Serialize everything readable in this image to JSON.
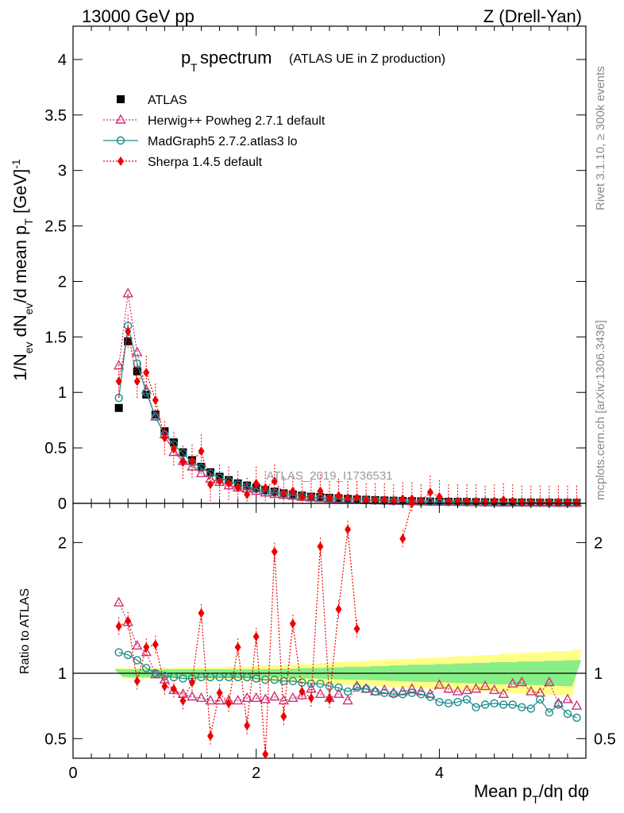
{
  "header": {
    "left": "13000 GeV pp",
    "right": "Z (Drell-Yan)"
  },
  "side_labels": {
    "rivet": "Rivet 3.1.10, ≥ 300k events",
    "mcplots": "mcplots.cern.ch [arXiv:1306.3436]"
  },
  "watermark": "ATLAS_2019_I1736531",
  "colors": {
    "atlas": "#000000",
    "herwig": "#cc3377",
    "madgraph": "#1a8a8a",
    "sherpa": "#ee0000",
    "band_inner": "#88ee88",
    "band_outer": "#ffff88"
  },
  "chart_data": [
    {
      "type": "scatter",
      "title_main": "p",
      "title_sub": "T",
      "title_main2": " spectrum",
      "title_note": "(ATLAS UE in Z production)",
      "ylabel": "1/N_ev dN_ev/d mean p_T [GeV]^-1",
      "ylabel_parts": [
        "1/N",
        "ev",
        " dN",
        "ev",
        "/d mean p",
        "T",
        " [GeV]",
        "-1"
      ],
      "xlim": [
        0,
        5.6
      ],
      "ylim": [
        0,
        4.3
      ],
      "yticks": [
        0,
        0.5,
        1,
        1.5,
        2,
        2.5,
        3,
        3.5,
        4
      ],
      "ytick_labels": [
        "0",
        "0.5",
        "1",
        "1.5",
        "2",
        "2.5",
        "3",
        "3.5",
        "4"
      ],
      "x": [
        0.5,
        0.6,
        0.7,
        0.8,
        0.9,
        1.0,
        1.1,
        1.2,
        1.3,
        1.4,
        1.5,
        1.6,
        1.7,
        1.8,
        1.9,
        2.0,
        2.1,
        2.2,
        2.3,
        2.4,
        2.5,
        2.6,
        2.7,
        2.8,
        2.9,
        3.0,
        3.1,
        3.2,
        3.3,
        3.4,
        3.5,
        3.6,
        3.7,
        3.8,
        3.9,
        4.0,
        4.1,
        4.2,
        4.3,
        4.4,
        4.5,
        4.6,
        4.7,
        4.8,
        4.9,
        5.0,
        5.1,
        5.2,
        5.3,
        5.4,
        5.5
      ],
      "series": [
        {
          "name": "ATLAS",
          "key": "atlas",
          "marker": "square",
          "values": [
            0.86,
            1.46,
            1.19,
            0.98,
            0.8,
            0.65,
            0.55,
            0.46,
            0.39,
            0.33,
            0.28,
            0.24,
            0.21,
            0.18,
            0.16,
            0.14,
            0.12,
            0.105,
            0.09,
            0.08,
            0.07,
            0.06,
            0.055,
            0.05,
            0.045,
            0.04,
            0.035,
            0.032,
            0.029,
            0.026,
            0.024,
            0.022,
            0.02,
            0.018,
            0.016,
            0.015,
            0.014,
            0.013,
            0.012,
            0.011,
            0.01,
            0.009,
            0.008,
            0.008,
            0.007,
            0.007,
            0.006,
            0.006,
            0.005,
            0.005,
            0.005
          ]
        },
        {
          "name": "Herwig++ Powheg 2.7.1 default",
          "key": "herwig",
          "marker": "triangle",
          "values": [
            1.24,
            1.89,
            1.36,
            1.02,
            0.78,
            0.62,
            0.46,
            0.38,
            0.33,
            0.27,
            0.22,
            0.19,
            0.16,
            0.14,
            0.13,
            0.11,
            0.095,
            0.082,
            0.074,
            0.066,
            0.055,
            0.05,
            0.045,
            0.04,
            0.036,
            0.032,
            0.03,
            0.027,
            0.025,
            0.023,
            0.021,
            0.019,
            0.017,
            0.015,
            0.014,
            0.013,
            0.012,
            0.011,
            0.01,
            0.009,
            0.008,
            0.008,
            0.007,
            0.007,
            0.006,
            0.006,
            0.005,
            0.005,
            0.005,
            0.004,
            0.004
          ]
        },
        {
          "name": "MadGraph5 2.7.2.atlas3 lo",
          "key": "madgraph",
          "marker": "circle",
          "values": [
            0.95,
            1.6,
            1.26,
            1.0,
            0.78,
            0.62,
            0.53,
            0.45,
            0.37,
            0.32,
            0.27,
            0.23,
            0.2,
            0.17,
            0.15,
            0.13,
            0.11,
            0.097,
            0.084,
            0.074,
            0.064,
            0.055,
            0.05,
            0.045,
            0.04,
            0.035,
            0.031,
            0.028,
            0.025,
            0.022,
            0.02,
            0.018,
            0.016,
            0.014,
            0.013,
            0.012,
            0.011,
            0.01,
            0.009,
            0.008,
            0.007,
            0.007,
            0.006,
            0.006,
            0.005,
            0.005,
            0.005,
            0.004,
            0.004,
            0.004,
            0.004
          ]
        },
        {
          "name": "Sherpa 1.4.5 default",
          "key": "sherpa",
          "marker": "diamond",
          "values": [
            1.1,
            1.55,
            1.1,
            1.18,
            0.93,
            0.59,
            0.49,
            0.37,
            0.38,
            0.47,
            0.17,
            0.2,
            0.18,
            0.14,
            0.08,
            0.18,
            0.14,
            0.2,
            0.09,
            0.11,
            0.06,
            0.06,
            0.11,
            0.05,
            0.07,
            0.05,
            0.05,
            0.03,
            0.03,
            0.03,
            0.02,
            0.04,
            0.04,
            0.02,
            0.1,
            0.06,
            0.02,
            0.02,
            0.02,
            0.02,
            0.01,
            0.02,
            0.03,
            0.02,
            0.01,
            0.01,
            0.01,
            0.01,
            0.01,
            0.01,
            0.01
          ]
        }
      ],
      "legend_position": "top-left"
    },
    {
      "type": "scatter",
      "ylabel": "Ratio to ATLAS",
      "xlabel": "Mean p_T/dη dφ",
      "xlabel_parts": [
        "Mean p",
        "T",
        "/dη dφ"
      ],
      "xlim": [
        0,
        5.6
      ],
      "ylim": [
        0.35,
        2.3
      ],
      "xticks": [
        0,
        2,
        4
      ],
      "xtick_labels": [
        "0",
        "2",
        "4"
      ],
      "yticks": [
        0.5,
        1,
        2
      ],
      "ytick_labels": [
        "0.5",
        "1",
        "2"
      ],
      "x": [
        0.5,
        0.6,
        0.7,
        0.8,
        0.9,
        1.0,
        1.1,
        1.2,
        1.3,
        1.4,
        1.5,
        1.6,
        1.7,
        1.8,
        1.9,
        2.0,
        2.1,
        2.2,
        2.3,
        2.4,
        2.5,
        2.6,
        2.7,
        2.8,
        2.9,
        3.0,
        3.1,
        3.2,
        3.3,
        3.4,
        3.5,
        3.6,
        3.7,
        3.8,
        3.9,
        4.0,
        4.1,
        4.2,
        4.3,
        4.4,
        4.5,
        4.6,
        4.7,
        4.8,
        4.9,
        5.0,
        5.1,
        5.2,
        5.3,
        5.4,
        5.5
      ],
      "band_inner_halfwidth": [
        0.03,
        0.03,
        0.03,
        0.03,
        0.03,
        0.03,
        0.03,
        0.03,
        0.03,
        0.03,
        0.03,
        0.03,
        0.03,
        0.03,
        0.03,
        0.03,
        0.03,
        0.03,
        0.035,
        0.035,
        0.04,
        0.04,
        0.04,
        0.045,
        0.045,
        0.05,
        0.05,
        0.05,
        0.055,
        0.055,
        0.06,
        0.06,
        0.065,
        0.065,
        0.065,
        0.07,
        0.07,
        0.075,
        0.075,
        0.08,
        0.08,
        0.085,
        0.085,
        0.085,
        0.09,
        0.09,
        0.09,
        0.095,
        0.095,
        0.1,
        0.1
      ],
      "band_outer_halfwidth": [
        0.04,
        0.04,
        0.04,
        0.04,
        0.04,
        0.04,
        0.04,
        0.045,
        0.045,
        0.045,
        0.045,
        0.045,
        0.05,
        0.05,
        0.05,
        0.055,
        0.06,
        0.06,
        0.065,
        0.065,
        0.07,
        0.07,
        0.075,
        0.08,
        0.085,
        0.09,
        0.09,
        0.095,
        0.1,
        0.1,
        0.105,
        0.11,
        0.11,
        0.115,
        0.12,
        0.12,
        0.125,
        0.13,
        0.13,
        0.135,
        0.14,
        0.14,
        0.15,
        0.15,
        0.155,
        0.16,
        0.16,
        0.165,
        0.17,
        0.17,
        0.18
      ],
      "series": [
        {
          "name": "Herwig++ Powheg 2.7.1 default",
          "key": "herwig",
          "marker": "triangle",
          "values": [
            1.54,
            1.39,
            1.21,
            1.16,
            0.99,
            0.95,
            0.87,
            0.84,
            0.82,
            0.81,
            0.79,
            0.79,
            0.79,
            0.79,
            0.81,
            0.81,
            0.8,
            0.82,
            0.79,
            0.81,
            0.83,
            0.88,
            0.84,
            0.81,
            0.84,
            0.79,
            0.9,
            0.88,
            0.86,
            0.87,
            0.85,
            0.86,
            0.88,
            0.86,
            0.84,
            0.91,
            0.88,
            0.86,
            0.87,
            0.88,
            0.9,
            0.87,
            0.84,
            0.92,
            0.93,
            0.86,
            0.85,
            0.93,
            0.77,
            0.8,
            0.75
          ]
        },
        {
          "name": "MadGraph5 2.7.2.atlas3 lo",
          "key": "madgraph",
          "marker": "circle",
          "values": [
            1.16,
            1.14,
            1.1,
            1.04,
            1.0,
            0.98,
            0.97,
            0.96,
            0.96,
            0.97,
            0.97,
            0.97,
            0.97,
            0.97,
            0.97,
            0.96,
            0.95,
            0.95,
            0.94,
            0.94,
            0.93,
            0.92,
            0.92,
            0.9,
            0.89,
            0.86,
            0.89,
            0.88,
            0.86,
            0.85,
            0.84,
            0.84,
            0.85,
            0.84,
            0.82,
            0.78,
            0.77,
            0.78,
            0.8,
            0.74,
            0.76,
            0.77,
            0.76,
            0.76,
            0.74,
            0.73,
            0.8,
            0.7,
            0.76,
            0.69,
            0.66
          ]
        },
        {
          "name": "Sherpa 1.4.5 default",
          "key": "sherpa",
          "marker": "diamond",
          "values": [
            1.36,
            1.4,
            0.94,
            1.2,
            1.22,
            0.9,
            0.88,
            0.79,
            0.93,
            1.46,
            0.52,
            0.85,
            0.77,
            1.2,
            0.6,
            1.28,
            0.38,
            1.93,
            0.67,
            1.38,
            0.86,
            0.81,
            1.97,
            0.8,
            1.49,
            2.1,
            1.34,
            null,
            null,
            null,
            null,
            2.03,
            2.3,
            null,
            null,
            null,
            null,
            null,
            null,
            null,
            null,
            null,
            null,
            null,
            null,
            null,
            null,
            null,
            null,
            null,
            null
          ]
        }
      ]
    }
  ]
}
